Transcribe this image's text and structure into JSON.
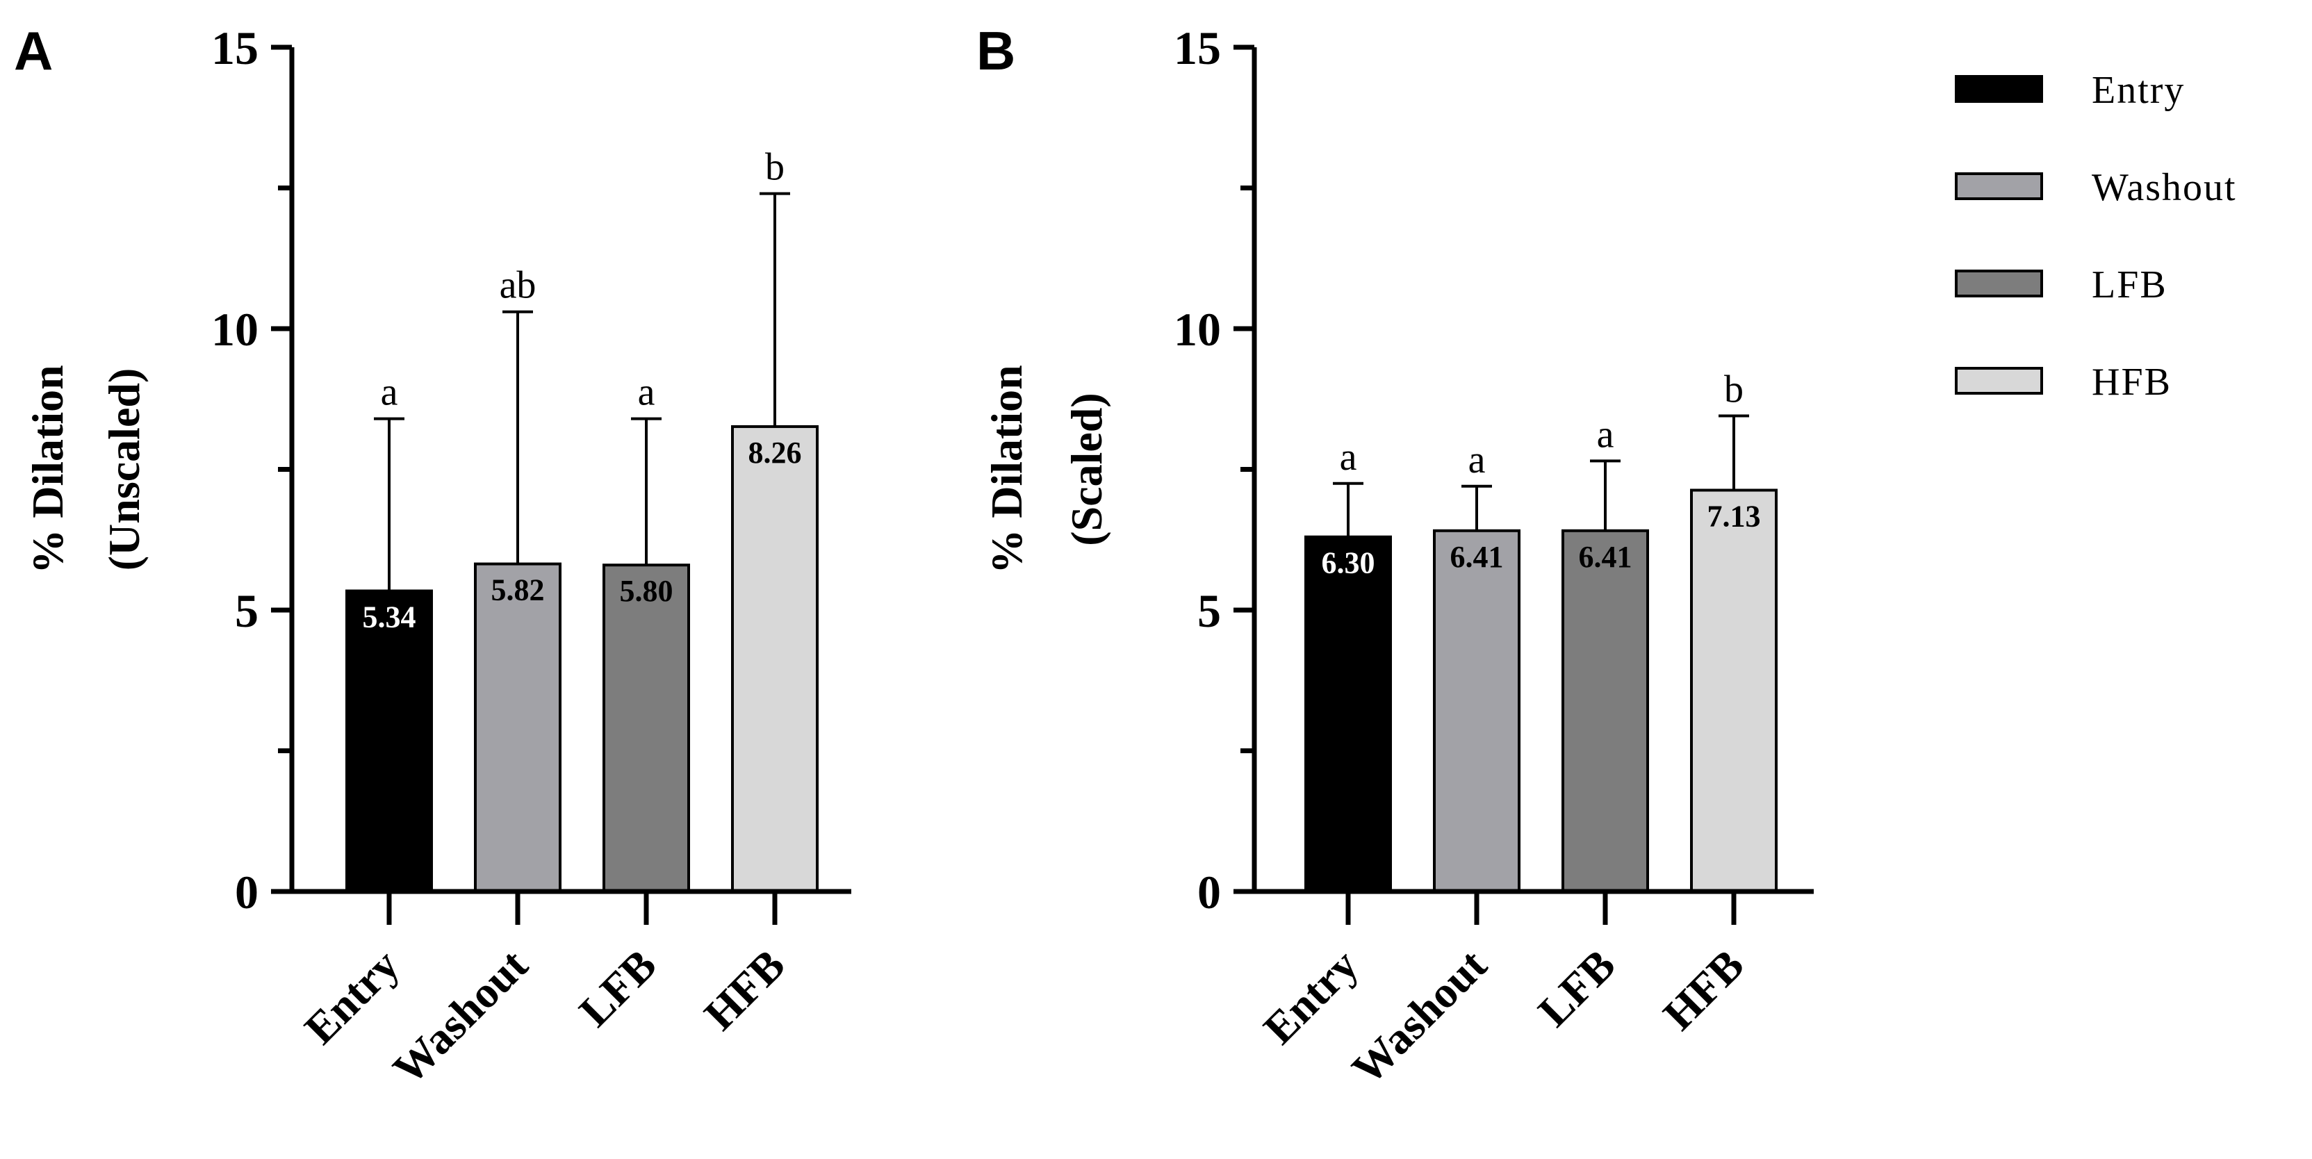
{
  "legend": [
    {
      "label": "Entry",
      "color": "#000000"
    },
    {
      "label": "Washout",
      "color": "#a2a2a7"
    },
    {
      "label": "LFB",
      "color": "#7d7d7d"
    },
    {
      "label": "HFB",
      "color": "#d8d8d8"
    }
  ],
  "chart_data": [
    {
      "panel": "A",
      "type": "bar",
      "title": "",
      "xlabel": "",
      "ylabel_lines": [
        "% Dilation",
        "(Unscaled)"
      ],
      "ylim": [
        0,
        15
      ],
      "yticks": [
        0,
        5,
        10,
        15
      ],
      "categories": [
        "Entry",
        "Washout",
        "LFB",
        "HFB"
      ],
      "values": [
        5.34,
        5.82,
        5.8,
        8.26
      ],
      "value_labels": [
        "5.34",
        "5.82",
        "5.80",
        "8.26"
      ],
      "error_upper": [
        8.4,
        10.3,
        8.4,
        12.4
      ],
      "significance": [
        "a",
        "ab",
        "a",
        "b"
      ]
    },
    {
      "panel": "B",
      "type": "bar",
      "title": "",
      "xlabel": "",
      "ylabel_lines": [
        "% Dilation",
        "(Scaled)"
      ],
      "ylim": [
        0,
        15
      ],
      "yticks": [
        0,
        5,
        10,
        15
      ],
      "categories": [
        "Entry",
        "Washout",
        "LFB",
        "HFB"
      ],
      "values": [
        6.3,
        6.41,
        6.41,
        7.13
      ],
      "value_labels": [
        "6.30",
        "6.41",
        "6.41",
        "7.13"
      ],
      "error_upper": [
        7.25,
        7.2,
        7.65,
        8.45
      ],
      "significance": [
        "a",
        "a",
        "a",
        "b"
      ]
    }
  ]
}
